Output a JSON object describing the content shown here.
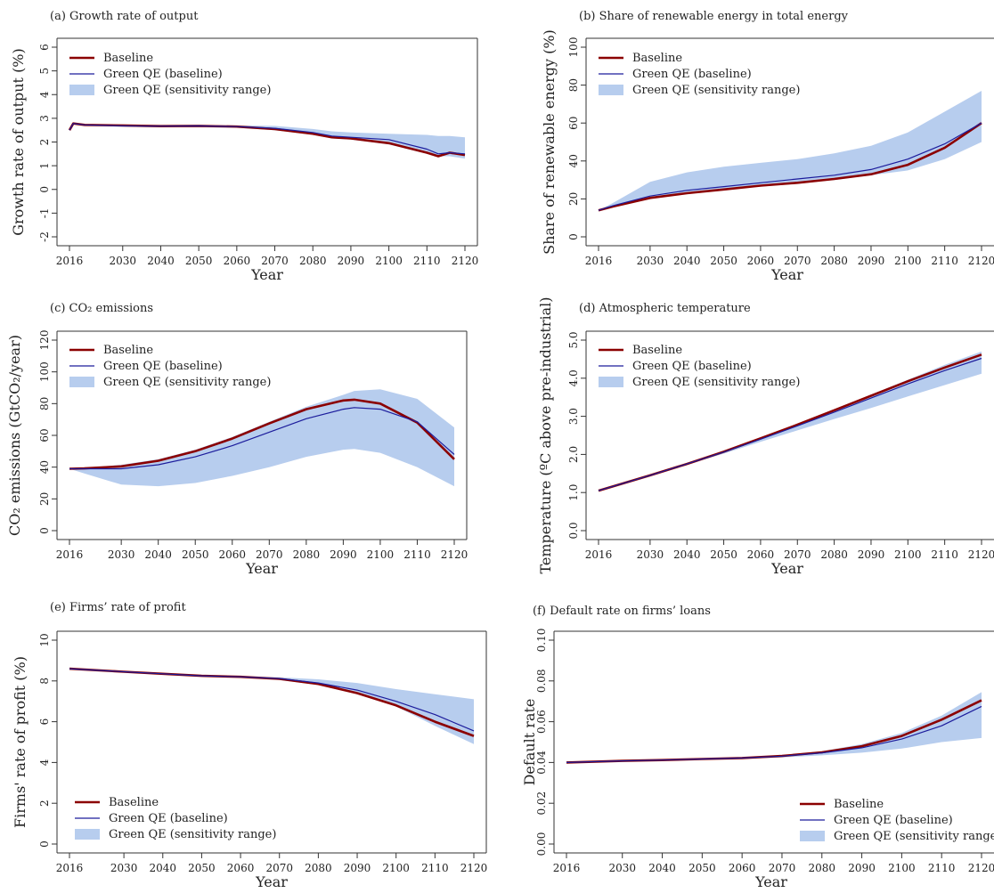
{
  "legend_labels": [
    "Baseline",
    "Green QE (baseline)",
    "Green QE (sensitivity range)"
  ],
  "colors": {
    "baseline": "#8b0000",
    "green_qe": "#1c1c9c",
    "band": "#b7cdee"
  },
  "chart_data": [
    {
      "type": "line",
      "title": "(a) Growth rate of output",
      "xlabel": "Year",
      "ylabel": "Growth rate of output (%)",
      "xlim": [
        2016,
        2120
      ],
      "ylim": [
        -2,
        6
      ],
      "xticks": [
        "2016",
        "2030",
        "2040",
        "2050",
        "2060",
        "2070",
        "2080",
        "2090",
        "2100",
        "2110",
        "2120"
      ],
      "yticks": [
        "-2",
        "-1",
        "0",
        "1",
        "2",
        "3",
        "4",
        "5",
        "6"
      ],
      "legend": "top-left",
      "x": [
        2016,
        2017,
        2020,
        2030,
        2040,
        2050,
        2060,
        2070,
        2080,
        2085,
        2090,
        2100,
        2110,
        2113,
        2116,
        2120
      ],
      "series": [
        {
          "name": "Baseline",
          "values": [
            2.5,
            2.78,
            2.72,
            2.7,
            2.67,
            2.68,
            2.65,
            2.55,
            2.35,
            2.2,
            2.15,
            1.95,
            1.55,
            1.4,
            1.55,
            1.45
          ]
        },
        {
          "name": "Green QE (baseline)",
          "values": [
            2.5,
            2.78,
            2.72,
            2.68,
            2.67,
            2.68,
            2.65,
            2.58,
            2.4,
            2.25,
            2.2,
            2.1,
            1.7,
            1.5,
            1.55,
            1.5
          ]
        }
      ],
      "band": {
        "name": "Green QE (sensitivity range)",
        "lower": [
          2.5,
          2.75,
          2.7,
          2.65,
          2.62,
          2.62,
          2.6,
          2.5,
          2.3,
          2.15,
          2.1,
          1.9,
          1.5,
          1.4,
          1.4,
          1.3
        ],
        "upper": [
          2.5,
          2.8,
          2.75,
          2.73,
          2.72,
          2.72,
          2.7,
          2.68,
          2.55,
          2.45,
          2.4,
          2.35,
          2.3,
          2.25,
          2.25,
          2.2
        ]
      }
    },
    {
      "type": "line",
      "title": "(b) Share of renewable energy in total energy",
      "xlabel": "Year",
      "ylabel": "Share of renewable energy (%)",
      "xlim": [
        2016,
        2120
      ],
      "ylim": [
        0,
        100
      ],
      "xticks": [
        "2016",
        "2030",
        "2040",
        "2050",
        "2060",
        "2070",
        "2080",
        "2090",
        "2100",
        "2110",
        "2120"
      ],
      "yticks": [
        "0",
        "20",
        "40",
        "60",
        "80",
        "100"
      ],
      "legend": "top-left",
      "x": [
        2016,
        2020,
        2030,
        2040,
        2050,
        2060,
        2070,
        2080,
        2090,
        2100,
        2110,
        2120
      ],
      "series": [
        {
          "name": "Baseline",
          "values": [
            14,
            16,
            20.5,
            23,
            25,
            27,
            28.5,
            30.5,
            33,
            38,
            47,
            60
          ]
        },
        {
          "name": "Green QE (baseline)",
          "values": [
            14,
            16.5,
            21.5,
            24.5,
            26.5,
            28.5,
            30.5,
            32.5,
            35.5,
            41,
            49,
            60
          ]
        }
      ],
      "band": {
        "name": "Green QE (sensitivity range)",
        "lower": [
          14,
          16,
          20,
          23,
          25,
          26.5,
          28,
          30,
          32.5,
          35,
          41,
          50
        ],
        "upper": [
          14,
          18,
          29,
          34,
          37,
          39,
          41,
          44,
          48,
          55,
          66,
          77
        ]
      }
    },
    {
      "type": "line",
      "title": "(c) CO₂ emissions",
      "xlabel": "Year",
      "ylabel": "CO₂ emissions (GtCO₂/year)",
      "xlim": [
        2016,
        2120
      ],
      "ylim": [
        0,
        120
      ],
      "xticks": [
        "2016",
        "2030",
        "2040",
        "2050",
        "2060",
        "2070",
        "2080",
        "2090",
        "2100",
        "2110",
        "2120"
      ],
      "yticks": [
        "0",
        "20",
        "40",
        "60",
        "80",
        "100",
        "120"
      ],
      "legend": "top-left",
      "x": [
        2016,
        2020,
        2030,
        2040,
        2050,
        2060,
        2070,
        2080,
        2090,
        2093,
        2100,
        2110,
        2120
      ],
      "series": [
        {
          "name": "Baseline",
          "values": [
            39,
            39.2,
            40.5,
            44,
            50,
            58,
            67.5,
            76.5,
            82,
            82.5,
            80,
            68,
            45
          ]
        },
        {
          "name": "Green QE (baseline)",
          "values": [
            39,
            39,
            39,
            41.5,
            46.5,
            53.5,
            62,
            70.5,
            76.5,
            77.5,
            76.5,
            68.5,
            48
          ]
        }
      ],
      "band": {
        "name": "Green QE (sensitivity range)",
        "lower": [
          39,
          36,
          29,
          28,
          30,
          34.5,
          40,
          46.5,
          51,
          51.5,
          49,
          40,
          28
        ],
        "upper": [
          39,
          39.5,
          41.5,
          45,
          51,
          59,
          68.5,
          78,
          85.5,
          88,
          89,
          83,
          65
        ]
      }
    },
    {
      "type": "line",
      "title": "(d) Atmospheric temperature",
      "xlabel": "Year",
      "ylabel": "Temperature (ºC above pre-industrial)",
      "xlim": [
        2016,
        2120
      ],
      "ylim": [
        0,
        5
      ],
      "xticks": [
        "2016",
        "2030",
        "2040",
        "2050",
        "2060",
        "2070",
        "2080",
        "2090",
        "2100",
        "2110",
        "2120"
      ],
      "yticks": [
        "0.0",
        "1.0",
        "2.0",
        "3.0",
        "4.0",
        "5.0"
      ],
      "legend": "top-left",
      "x": [
        2016,
        2030,
        2040,
        2050,
        2060,
        2070,
        2080,
        2090,
        2100,
        2110,
        2120
      ],
      "series": [
        {
          "name": "Baseline",
          "values": [
            1.05,
            1.45,
            1.75,
            2.07,
            2.42,
            2.78,
            3.16,
            3.54,
            3.92,
            4.28,
            4.62
          ]
        },
        {
          "name": "Green QE (baseline)",
          "values": [
            1.05,
            1.45,
            1.75,
            2.06,
            2.4,
            2.75,
            3.11,
            3.48,
            3.85,
            4.2,
            4.52
          ]
        }
      ],
      "band": {
        "name": "Green QE (sensitivity range)",
        "lower": [
          1.05,
          1.44,
          1.73,
          2.02,
          2.33,
          2.63,
          2.93,
          3.22,
          3.52,
          3.82,
          4.12
        ],
        "upper": [
          1.05,
          1.46,
          1.76,
          2.08,
          2.43,
          2.8,
          3.18,
          3.57,
          3.96,
          4.35,
          4.7
        ]
      }
    },
    {
      "type": "line",
      "title": "(e) Firms’ rate of profit",
      "xlabel": "Year",
      "ylabel": "Firms' rate of profit (%)",
      "xlim": [
        2016,
        2120
      ],
      "ylim": [
        0,
        10
      ],
      "xticks": [
        "2016",
        "2030",
        "2040",
        "2050",
        "2060",
        "2070",
        "2080",
        "2090",
        "2100",
        "2110",
        "2120"
      ],
      "yticks": [
        "0",
        "2",
        "4",
        "6",
        "8",
        "10"
      ],
      "legend": "bottom-left",
      "x": [
        2016,
        2030,
        2040,
        2050,
        2060,
        2070,
        2080,
        2090,
        2100,
        2110,
        2120
      ],
      "series": [
        {
          "name": "Baseline",
          "values": [
            8.6,
            8.45,
            8.35,
            8.25,
            8.2,
            8.1,
            7.85,
            7.4,
            6.8,
            6.0,
            5.3
          ]
        },
        {
          "name": "Green QE (baseline)",
          "values": [
            8.6,
            8.45,
            8.35,
            8.25,
            8.2,
            8.12,
            7.9,
            7.55,
            7.0,
            6.35,
            5.55
          ]
        }
      ],
      "band": {
        "name": "Green QE (sensitivity range)",
        "lower": [
          8.6,
          8.43,
          8.33,
          8.23,
          8.17,
          8.05,
          7.8,
          7.35,
          6.75,
          5.8,
          4.9
        ],
        "upper": [
          8.6,
          8.47,
          8.37,
          8.27,
          8.22,
          8.18,
          8.08,
          7.9,
          7.6,
          7.35,
          7.1
        ]
      }
    },
    {
      "type": "line",
      "title": "(f) Default rate on firms’ loans",
      "xlabel": "Year",
      "ylabel": "Default rate",
      "xlim": [
        2016,
        2120
      ],
      "ylim": [
        0,
        0.1
      ],
      "xticks": [
        "2016",
        "2030",
        "2040",
        "2050",
        "2060",
        "2070",
        "2080",
        "2090",
        "2100",
        "2110",
        "2120"
      ],
      "yticks": [
        "0.00",
        "0.02",
        "0.04",
        "0.06",
        "0.08",
        "0.10"
      ],
      "legend": "bottom-right",
      "x": [
        2016,
        2030,
        2040,
        2050,
        2060,
        2070,
        2080,
        2090,
        2100,
        2110,
        2120
      ],
      "series": [
        {
          "name": "Baseline",
          "values": [
            0.04,
            0.0408,
            0.0412,
            0.0417,
            0.0422,
            0.0432,
            0.045,
            0.048,
            0.053,
            0.061,
            0.0705
          ]
        },
        {
          "name": "Green QE (baseline)",
          "values": [
            0.04,
            0.0408,
            0.0412,
            0.0417,
            0.0422,
            0.0431,
            0.0447,
            0.0472,
            0.0515,
            0.058,
            0.0675
          ]
        }
      ],
      "band": {
        "name": "Green QE (sensitivity range)",
        "lower": [
          0.04,
          0.0405,
          0.041,
          0.0414,
          0.0418,
          0.0425,
          0.0435,
          0.0448,
          0.0468,
          0.05,
          0.052
        ],
        "upper": [
          0.04,
          0.041,
          0.0414,
          0.0419,
          0.0425,
          0.0436,
          0.0455,
          0.049,
          0.0545,
          0.063,
          0.0745
        ]
      }
    }
  ]
}
